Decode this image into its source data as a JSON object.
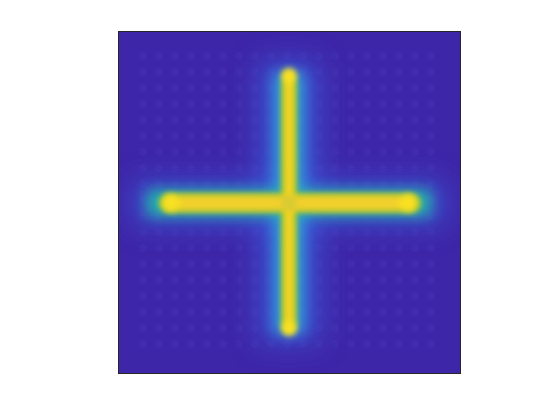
{
  "image": {
    "kind": "intensity-map",
    "colormap": "parula",
    "colors": {
      "background": "#3e26a8",
      "mid_low": "#2c8de0",
      "mid": "#20b5a8",
      "mid_high": "#a8c430",
      "peak": "#f5d320"
    }
  }
}
